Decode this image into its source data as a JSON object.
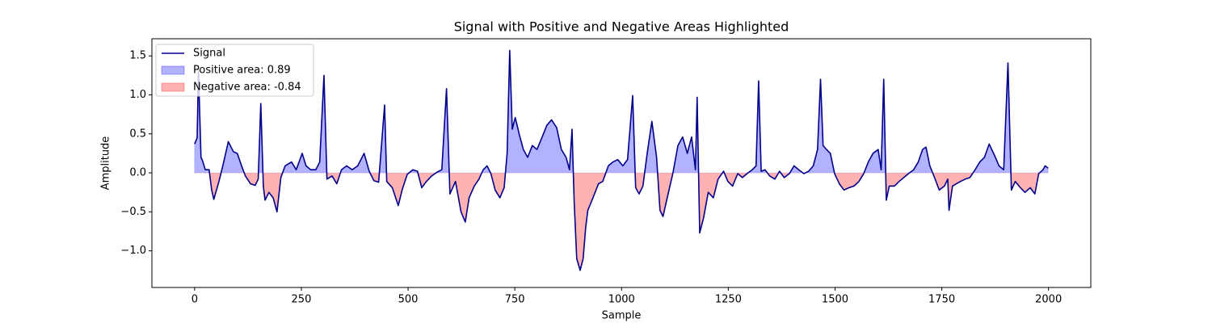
{
  "chart_data": {
    "type": "signal-area",
    "title": "Signal with Positive and Negative Areas Highlighted",
    "x_label": "Sample",
    "y_label": "Amplitude",
    "xlim": [
      -100,
      2099
    ],
    "ylim": [
      -1.47,
      1.72
    ],
    "xticks": [
      0,
      250,
      500,
      750,
      1000,
      1250,
      1500,
      1750,
      2000
    ],
    "yticks": [
      {
        "value": -1,
        "label": "−1.0"
      },
      {
        "value": -0.5,
        "label": "−0.5"
      },
      {
        "value": 0,
        "label": "0.0"
      },
      0.5,
      {
        "value": 1,
        "label": "1.0"
      },
      1.5
    ],
    "legend": "upper left",
    "fills": [
      {
        "name": "Positive area: 0.89",
        "color": "#0000ff",
        "alpha": 0.3,
        "sign": "positive"
      },
      {
        "name": "Negative area: -0.84",
        "color": "#ff0000",
        "alpha": 0.3,
        "sign": "negative"
      }
    ],
    "series": [
      {
        "name": "Signal",
        "color": "#00008b",
        "x": [
          0,
          6,
          9,
          15,
          19,
          25,
          34,
          40,
          45,
          57,
          66,
          79,
          91,
          100,
          110,
          119,
          131,
          142,
          149,
          155,
          161,
          165,
          174,
          184,
          193,
          202,
          212,
          227,
          238,
          252,
          261,
          272,
          284,
          293,
          303,
          310,
          322,
          333,
          344,
          356,
          369,
          382,
          397,
          409,
          420,
          431,
          445,
          450,
          463,
          477,
          486,
          498,
          511,
          522,
          532,
          543,
          555,
          568,
          579,
          590,
          598,
          611,
          624,
          634,
          643,
          655,
          666,
          676,
          685,
          694,
          704,
          715,
          725,
          732,
          738,
          744,
          751,
          761,
          770,
          780,
          791,
          802,
          814,
          825,
          836,
          848,
          859,
          870,
          878,
          884,
          889,
          895,
          903,
          910,
          916,
          921,
          933,
          946,
          956,
          969,
          980,
          991,
          1003,
          1014,
          1026,
          1033,
          1041,
          1050,
          1060,
          1071,
          1082,
          1090,
          1097,
          1109,
          1120,
          1132,
          1143,
          1154,
          1164,
          1173,
          1177,
          1183,
          1192,
          1203,
          1215,
          1226,
          1239,
          1249,
          1260,
          1272,
          1283,
          1294,
          1306,
          1315,
          1321,
          1327,
          1336,
          1347,
          1359,
          1370,
          1381,
          1393,
          1404,
          1415,
          1427,
          1438,
          1449,
          1459,
          1466,
          1472,
          1480,
          1489,
          1499,
          1510,
          1521,
          1533,
          1544,
          1556,
          1567,
          1578,
          1589,
          1601,
          1608,
          1614,
          1620,
          1627,
          1639,
          1650,
          1661,
          1672,
          1684,
          1695,
          1705,
          1713,
          1722,
          1733,
          1744,
          1756,
          1764,
          1767,
          1775,
          1784,
          1794,
          1805,
          1816,
          1828,
          1839,
          1850,
          1861,
          1873,
          1884,
          1895,
          1905,
          1913,
          1922,
          1934,
          1945,
          1957,
          1968,
          1977,
          1987,
          1992,
          1999
        ],
        "values": [
          0.37,
          0.45,
          1.33,
          0.2,
          0.15,
          0.04,
          0.04,
          -0.22,
          -0.34,
          -0.11,
          0.09,
          0.4,
          0.27,
          0.25,
          0.09,
          -0.04,
          -0.14,
          -0.16,
          -0.08,
          0.89,
          -0.17,
          -0.35,
          -0.25,
          -0.32,
          -0.5,
          -0.06,
          0.09,
          0.14,
          0.04,
          0.25,
          0.09,
          0.04,
          0.04,
          0.14,
          1.25,
          -0.08,
          -0.04,
          -0.14,
          0.04,
          0.09,
          0.04,
          0.09,
          0.25,
          0.02,
          -0.1,
          -0.12,
          0.87,
          -0.11,
          -0.19,
          -0.42,
          -0.22,
          -0.02,
          0.04,
          0.02,
          -0.19,
          -0.11,
          -0.04,
          0.01,
          0.04,
          1.08,
          -0.27,
          -0.11,
          -0.5,
          -0.63,
          -0.32,
          -0.17,
          -0.08,
          0.04,
          0.09,
          -0.01,
          -0.22,
          -0.32,
          -0.19,
          0.25,
          1.57,
          0.56,
          0.71,
          0.48,
          0.3,
          0.2,
          0.35,
          0.3,
          0.46,
          0.61,
          0.68,
          0.58,
          0.3,
          0.2,
          0.04,
          0.56,
          -0.37,
          -1.1,
          -1.25,
          -1.1,
          -0.7,
          -0.48,
          -0.32,
          -0.14,
          -0.11,
          0.09,
          0.14,
          0.17,
          0.09,
          0.17,
          0.99,
          -0.19,
          -0.27,
          -0.17,
          0.25,
          0.66,
          0.2,
          -0.48,
          -0.56,
          -0.27,
          -0.01,
          0.35,
          0.46,
          0.25,
          0.46,
          0.04,
          0.97,
          -0.77,
          -0.58,
          -0.25,
          -0.32,
          -0.08,
          0.02,
          -0.11,
          -0.17,
          -0.01,
          -0.06,
          -0.01,
          0.04,
          0.09,
          1.18,
          0.02,
          0.04,
          -0.04,
          -0.08,
          0.02,
          -0.06,
          -0.01,
          0.09,
          0.04,
          -0.01,
          0.02,
          0.09,
          0.3,
          1.2,
          0.35,
          0.3,
          0.25,
          -0.01,
          -0.14,
          -0.22,
          -0.19,
          -0.17,
          -0.11,
          -0.01,
          0.14,
          0.25,
          0.3,
          0.04,
          1.2,
          -0.35,
          -0.17,
          -0.17,
          -0.11,
          -0.06,
          -0.01,
          0.04,
          0.14,
          0.3,
          0.33,
          0.09,
          -0.06,
          -0.22,
          -0.17,
          -0.08,
          -0.48,
          -0.17,
          -0.14,
          -0.11,
          -0.08,
          -0.06,
          0.04,
          0.14,
          0.2,
          0.37,
          0.23,
          0.09,
          0.04,
          1.41,
          -0.22,
          -0.11,
          -0.19,
          -0.25,
          -0.19,
          -0.27,
          -0.01,
          0.04,
          0.09,
          0.06
        ]
      }
    ]
  }
}
